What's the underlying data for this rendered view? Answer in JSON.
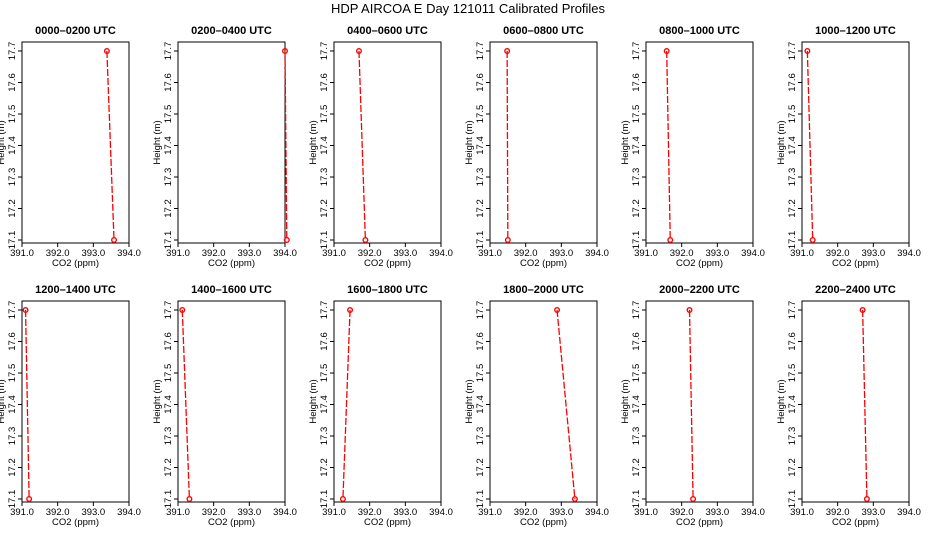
{
  "title": "HDP AIRCOA E  Day 121011  Calibrated Profiles",
  "colors": {
    "series": "#ff0000",
    "axis": "#000000"
  },
  "chart_data": [
    {
      "type": "line",
      "title": "0000–0200 UTC",
      "xlabel": "CO2 (ppm)",
      "ylabel": "Height (m)",
      "xlim": [
        391.0,
        394.0
      ],
      "ylim": [
        17.1,
        17.7
      ],
      "xticks": [
        "391.0",
        "392.0",
        "393.0",
        "394.0"
      ],
      "yticks": [
        "17.1",
        "17.2",
        "17.3",
        "17.4",
        "17.5",
        "17.6",
        "17.7"
      ],
      "points": [
        {
          "x": 393.38,
          "y": 17.7
        },
        {
          "x": 393.58,
          "y": 17.1
        }
      ]
    },
    {
      "type": "line",
      "title": "0200–0400 UTC",
      "xlabel": "CO2 (ppm)",
      "ylabel": "Height (m)",
      "xlim": [
        391.0,
        394.0
      ],
      "ylim": [
        17.1,
        17.7
      ],
      "xticks": [
        "391.0",
        "392.0",
        "393.0",
        "394.0"
      ],
      "yticks": [
        "17.1",
        "17.2",
        "17.3",
        "17.4",
        "17.5",
        "17.6",
        "17.7"
      ],
      "points": [
        {
          "x": 394.0,
          "y": 17.7
        },
        {
          "x": 394.05,
          "y": 17.1
        }
      ]
    },
    {
      "type": "line",
      "title": "0400–0600 UTC",
      "xlabel": "CO2 (ppm)",
      "ylabel": "Height (m)",
      "xlim": [
        391.0,
        394.0
      ],
      "ylim": [
        17.1,
        17.7
      ],
      "xticks": [
        "391.0",
        "392.0",
        "393.0",
        "394.0"
      ],
      "yticks": [
        "17.1",
        "17.2",
        "17.3",
        "17.4",
        "17.5",
        "17.6",
        "17.7"
      ],
      "points": [
        {
          "x": 391.7,
          "y": 17.7
        },
        {
          "x": 391.88,
          "y": 17.1
        }
      ]
    },
    {
      "type": "line",
      "title": "0600–0800 UTC",
      "xlabel": "CO2 (ppm)",
      "ylabel": "Height (m)",
      "xlim": [
        391.0,
        394.0
      ],
      "ylim": [
        17.1,
        17.7
      ],
      "xticks": [
        "391.0",
        "392.0",
        "393.0",
        "394.0"
      ],
      "yticks": [
        "17.1",
        "17.2",
        "17.3",
        "17.4",
        "17.5",
        "17.6",
        "17.7"
      ],
      "points": [
        {
          "x": 391.48,
          "y": 17.7
        },
        {
          "x": 391.5,
          "y": 17.1
        }
      ]
    },
    {
      "type": "line",
      "title": "0800–1000 UTC",
      "xlabel": "CO2 (ppm)",
      "ylabel": "Height (m)",
      "xlim": [
        391.0,
        394.0
      ],
      "ylim": [
        17.1,
        17.7
      ],
      "xticks": [
        "391.0",
        "392.0",
        "393.0",
        "394.0"
      ],
      "yticks": [
        "17.1",
        "17.2",
        "17.3",
        "17.4",
        "17.5",
        "17.6",
        "17.7"
      ],
      "points": [
        {
          "x": 391.58,
          "y": 17.7
        },
        {
          "x": 391.68,
          "y": 17.1
        }
      ]
    },
    {
      "type": "line",
      "title": "1000–1200 UTC",
      "xlabel": "CO2 (ppm)",
      "ylabel": "Height (m)",
      "xlim": [
        391.0,
        394.0
      ],
      "ylim": [
        17.1,
        17.7
      ],
      "xticks": [
        "391.0",
        "392.0",
        "393.0",
        "394.0"
      ],
      "yticks": [
        "17.1",
        "17.2",
        "17.3",
        "17.4",
        "17.5",
        "17.6",
        "17.7"
      ],
      "points": [
        {
          "x": 391.15,
          "y": 17.7
        },
        {
          "x": 391.3,
          "y": 17.1
        }
      ]
    },
    {
      "type": "line",
      "title": "1200–1400 UTC",
      "xlabel": "CO2 (ppm)",
      "ylabel": "Height (m)",
      "xlim": [
        391.0,
        394.0
      ],
      "ylim": [
        17.1,
        17.7
      ],
      "xticks": [
        "391.0",
        "392.0",
        "393.0",
        "394.0"
      ],
      "yticks": [
        "17.1",
        "17.2",
        "17.3",
        "17.4",
        "17.5",
        "17.6",
        "17.7"
      ],
      "points": [
        {
          "x": 391.1,
          "y": 17.7
        },
        {
          "x": 391.2,
          "y": 17.1
        }
      ]
    },
    {
      "type": "line",
      "title": "1400–1600 UTC",
      "xlabel": "CO2 (ppm)",
      "ylabel": "Height (m)",
      "xlim": [
        391.0,
        394.0
      ],
      "ylim": [
        17.1,
        17.7
      ],
      "xticks": [
        "391.0",
        "392.0",
        "393.0",
        "394.0"
      ],
      "yticks": [
        "17.1",
        "17.2",
        "17.3",
        "17.4",
        "17.5",
        "17.6",
        "17.7"
      ],
      "points": [
        {
          "x": 391.12,
          "y": 17.7
        },
        {
          "x": 391.32,
          "y": 17.1
        }
      ]
    },
    {
      "type": "line",
      "title": "1600–1800 UTC",
      "xlabel": "CO2 (ppm)",
      "ylabel": "Height (m)",
      "xlim": [
        391.0,
        394.0
      ],
      "ylim": [
        17.1,
        17.7
      ],
      "xticks": [
        "391.0",
        "392.0",
        "393.0",
        "394.0"
      ],
      "yticks": [
        "17.1",
        "17.2",
        "17.3",
        "17.4",
        "17.5",
        "17.6",
        "17.7"
      ],
      "points": [
        {
          "x": 391.45,
          "y": 17.7
        },
        {
          "x": 391.25,
          "y": 17.1
        }
      ]
    },
    {
      "type": "line",
      "title": "1800–2000 UTC",
      "xlabel": "CO2 (ppm)",
      "ylabel": "Height (m)",
      "xlim": [
        391.0,
        394.0
      ],
      "ylim": [
        17.1,
        17.7
      ],
      "xticks": [
        "391.0",
        "392.0",
        "393.0",
        "394.0"
      ],
      "yticks": [
        "17.1",
        "17.2",
        "17.3",
        "17.4",
        "17.5",
        "17.6",
        "17.7"
      ],
      "points": [
        {
          "x": 392.88,
          "y": 17.7
        },
        {
          "x": 393.38,
          "y": 17.1
        }
      ]
    },
    {
      "type": "line",
      "title": "2000–2200 UTC",
      "xlabel": "CO2 (ppm)",
      "ylabel": "Height (m)",
      "xlim": [
        391.0,
        394.0
      ],
      "ylim": [
        17.1,
        17.7
      ],
      "xticks": [
        "391.0",
        "392.0",
        "393.0",
        "394.0"
      ],
      "yticks": [
        "17.1",
        "17.2",
        "17.3",
        "17.4",
        "17.5",
        "17.6",
        "17.7"
      ],
      "points": [
        {
          "x": 392.22,
          "y": 17.7
        },
        {
          "x": 392.32,
          "y": 17.1
        }
      ]
    },
    {
      "type": "line",
      "title": "2200–2400 UTC",
      "xlabel": "CO2 (ppm)",
      "ylabel": "Height (m)",
      "xlim": [
        391.0,
        394.0
      ],
      "ylim": [
        17.1,
        17.7
      ],
      "xticks": [
        "391.0",
        "392.0",
        "393.0",
        "394.0"
      ],
      "yticks": [
        "17.1",
        "17.2",
        "17.3",
        "17.4",
        "17.5",
        "17.6",
        "17.7"
      ],
      "points": [
        {
          "x": 392.7,
          "y": 17.7
        },
        {
          "x": 392.82,
          "y": 17.1
        }
      ]
    }
  ]
}
